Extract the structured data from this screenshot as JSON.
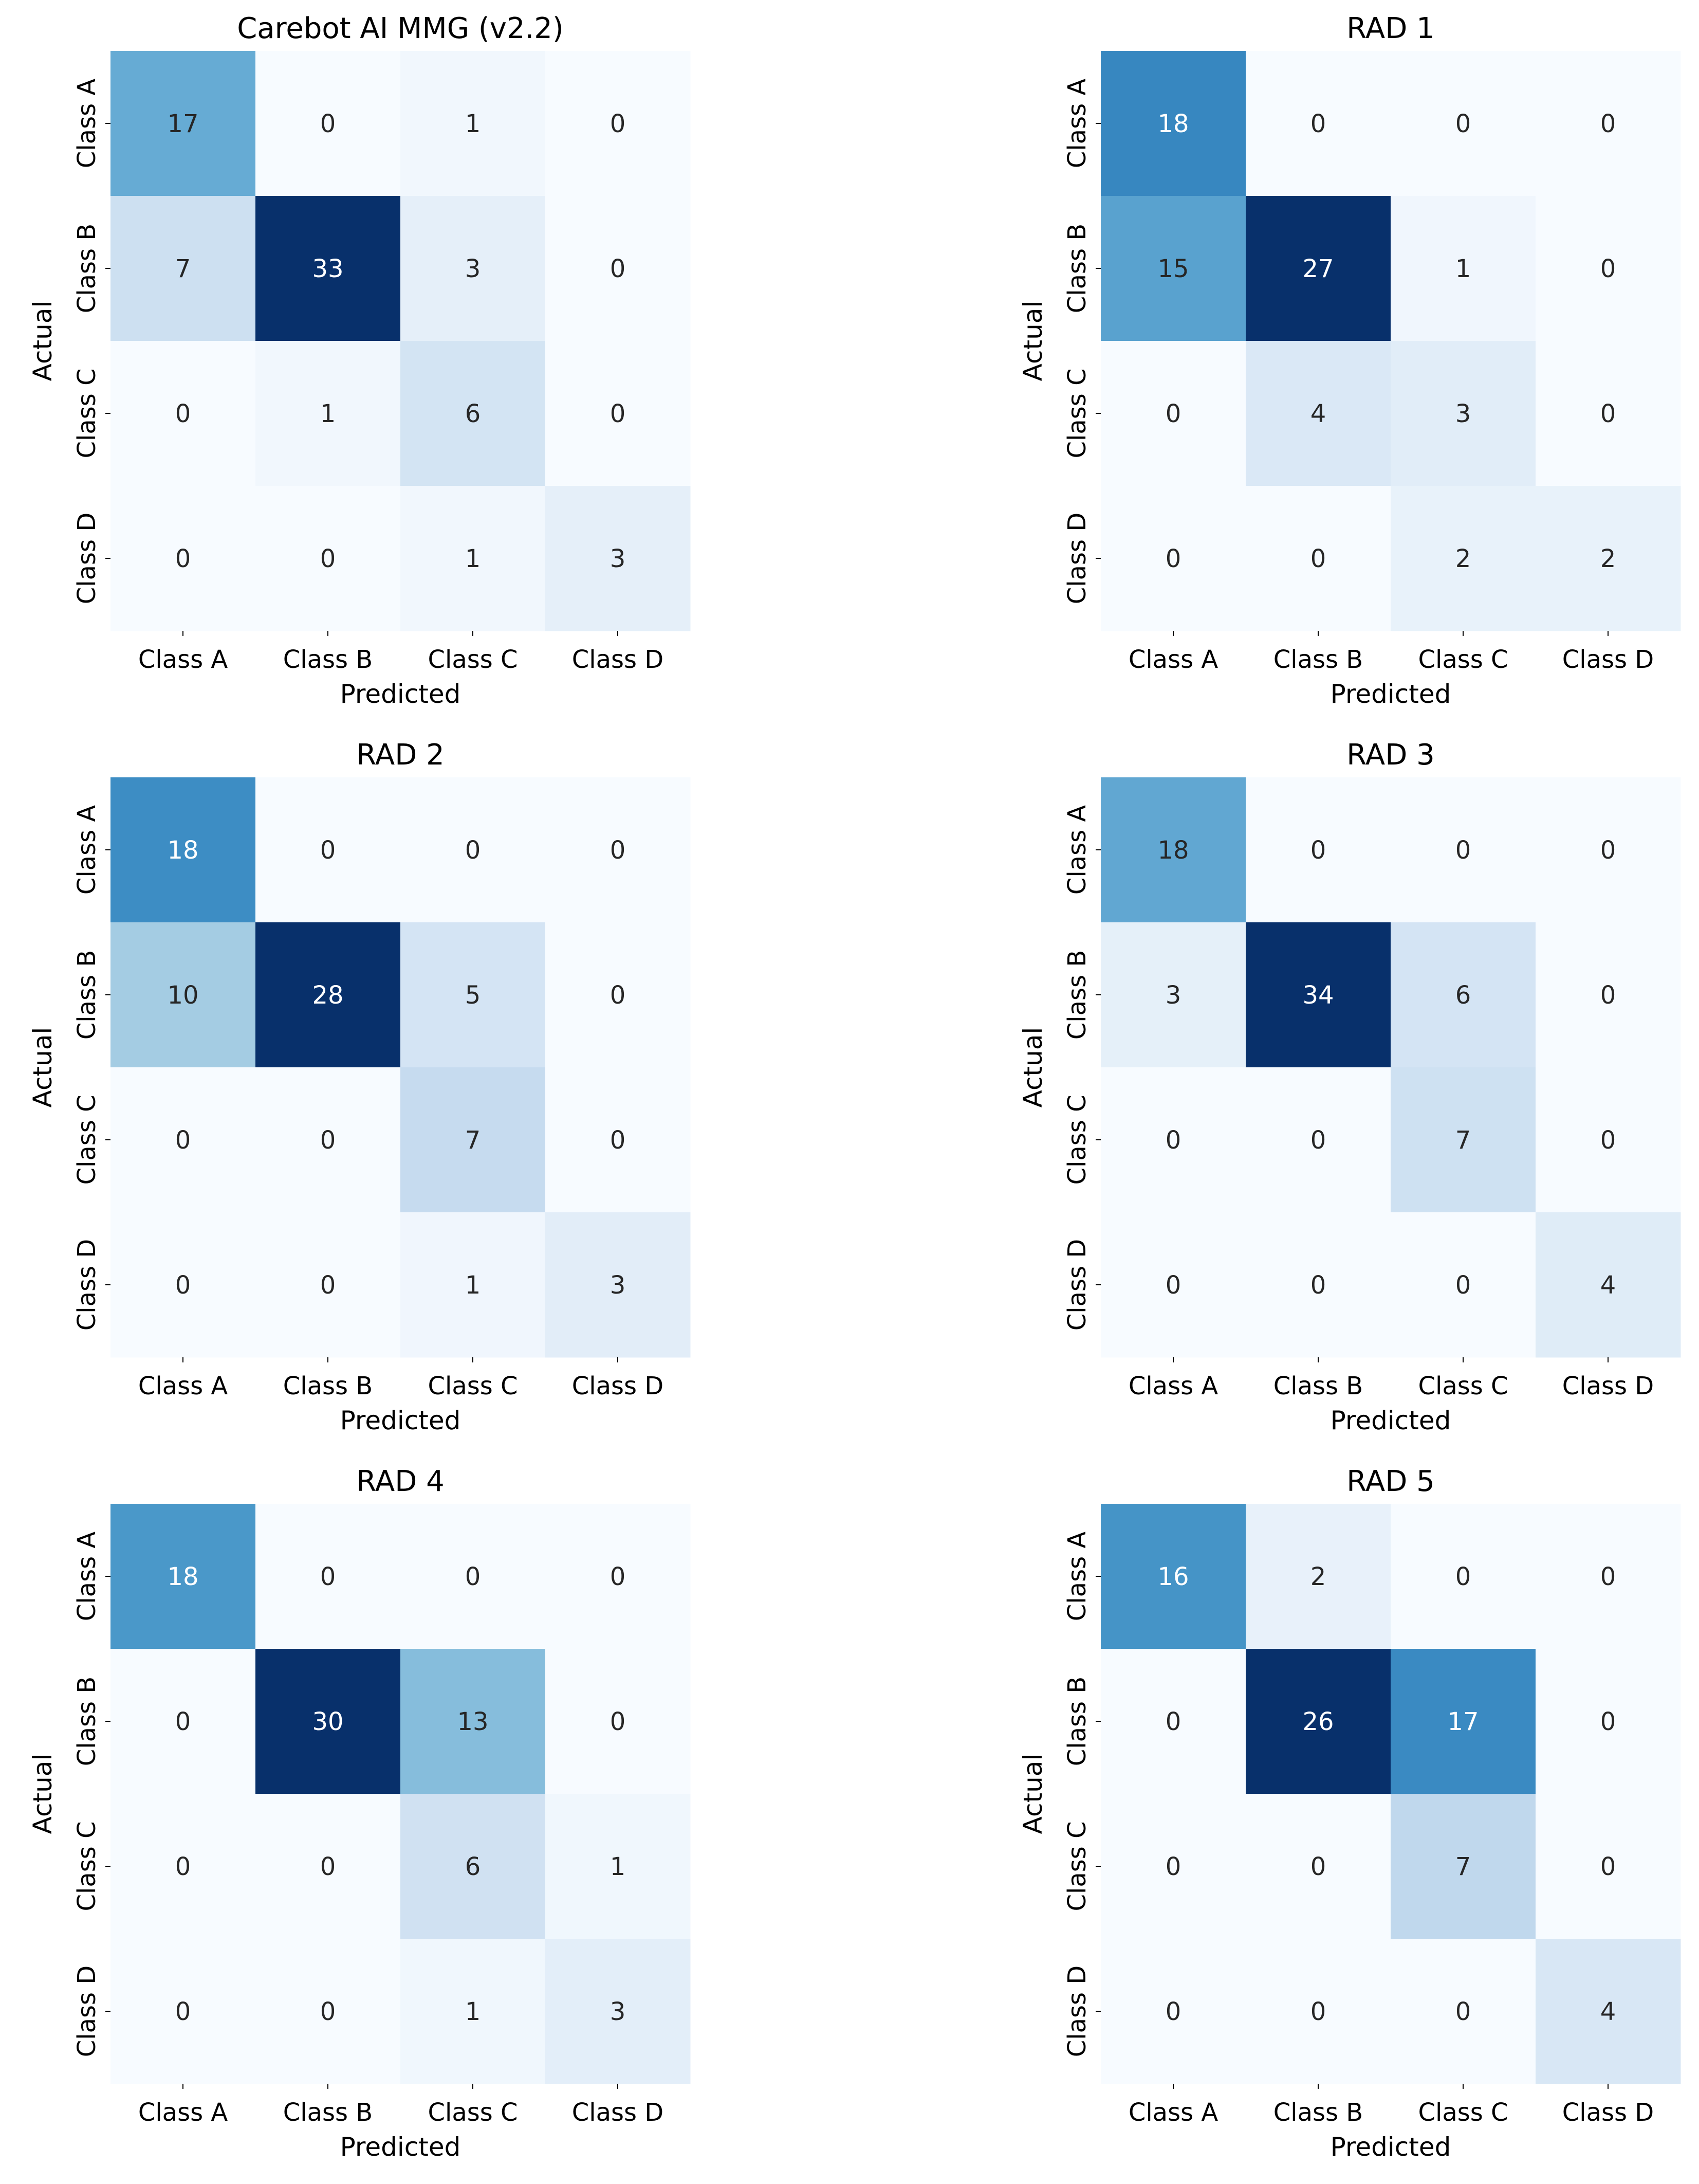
{
  "chart_data": [
    {
      "type": "heatmap",
      "title": "Carebot AI MMG (v2.2)",
      "xlabel": "Predicted",
      "ylabel": "Actual",
      "x_categories": [
        "Class A",
        "Class B",
        "Class C",
        "Class D"
      ],
      "y_categories": [
        "Class A",
        "Class B",
        "Class C",
        "Class D"
      ],
      "matrix": [
        [
          17,
          0,
          1,
          0
        ],
        [
          7,
          33,
          3,
          0
        ],
        [
          0,
          1,
          6,
          0
        ],
        [
          0,
          0,
          1,
          3
        ]
      ],
      "colormap": "Blues"
    },
    {
      "type": "heatmap",
      "title": "RAD 1",
      "xlabel": "Predicted",
      "ylabel": "Actual",
      "x_categories": [
        "Class A",
        "Class B",
        "Class C",
        "Class D"
      ],
      "y_categories": [
        "Class A",
        "Class B",
        "Class C",
        "Class D"
      ],
      "matrix": [
        [
          18,
          0,
          0,
          0
        ],
        [
          15,
          27,
          1,
          0
        ],
        [
          0,
          4,
          3,
          0
        ],
        [
          0,
          0,
          2,
          2
        ]
      ],
      "colormap": "Blues"
    },
    {
      "type": "heatmap",
      "title": "RAD 2",
      "xlabel": "Predicted",
      "ylabel": "Actual",
      "x_categories": [
        "Class A",
        "Class B",
        "Class C",
        "Class D"
      ],
      "y_categories": [
        "Class A",
        "Class B",
        "Class C",
        "Class D"
      ],
      "matrix": [
        [
          18,
          0,
          0,
          0
        ],
        [
          10,
          28,
          5,
          0
        ],
        [
          0,
          0,
          7,
          0
        ],
        [
          0,
          0,
          1,
          3
        ]
      ],
      "colormap": "Blues"
    },
    {
      "type": "heatmap",
      "title": "RAD 3",
      "xlabel": "Predicted",
      "ylabel": "Actual",
      "x_categories": [
        "Class A",
        "Class B",
        "Class C",
        "Class D"
      ],
      "y_categories": [
        "Class A",
        "Class B",
        "Class C",
        "Class D"
      ],
      "matrix": [
        [
          18,
          0,
          0,
          0
        ],
        [
          3,
          34,
          6,
          0
        ],
        [
          0,
          0,
          7,
          0
        ],
        [
          0,
          0,
          0,
          4
        ]
      ],
      "colormap": "Blues"
    },
    {
      "type": "heatmap",
      "title": "RAD 4",
      "xlabel": "Predicted",
      "ylabel": "Actual",
      "x_categories": [
        "Class A",
        "Class B",
        "Class C",
        "Class D"
      ],
      "y_categories": [
        "Class A",
        "Class B",
        "Class C",
        "Class D"
      ],
      "matrix": [
        [
          18,
          0,
          0,
          0
        ],
        [
          0,
          30,
          13,
          0
        ],
        [
          0,
          0,
          6,
          1
        ],
        [
          0,
          0,
          1,
          3
        ]
      ],
      "colormap": "Blues"
    },
    {
      "type": "heatmap",
      "title": "RAD 5",
      "xlabel": "Predicted",
      "ylabel": "Actual",
      "x_categories": [
        "Class A",
        "Class B",
        "Class C",
        "Class D"
      ],
      "y_categories": [
        "Class A",
        "Class B",
        "Class C",
        "Class D"
      ],
      "matrix": [
        [
          16,
          2,
          0,
          0
        ],
        [
          0,
          26,
          17,
          0
        ],
        [
          0,
          0,
          7,
          0
        ],
        [
          0,
          0,
          0,
          4
        ]
      ],
      "colormap": "Blues"
    }
  ]
}
